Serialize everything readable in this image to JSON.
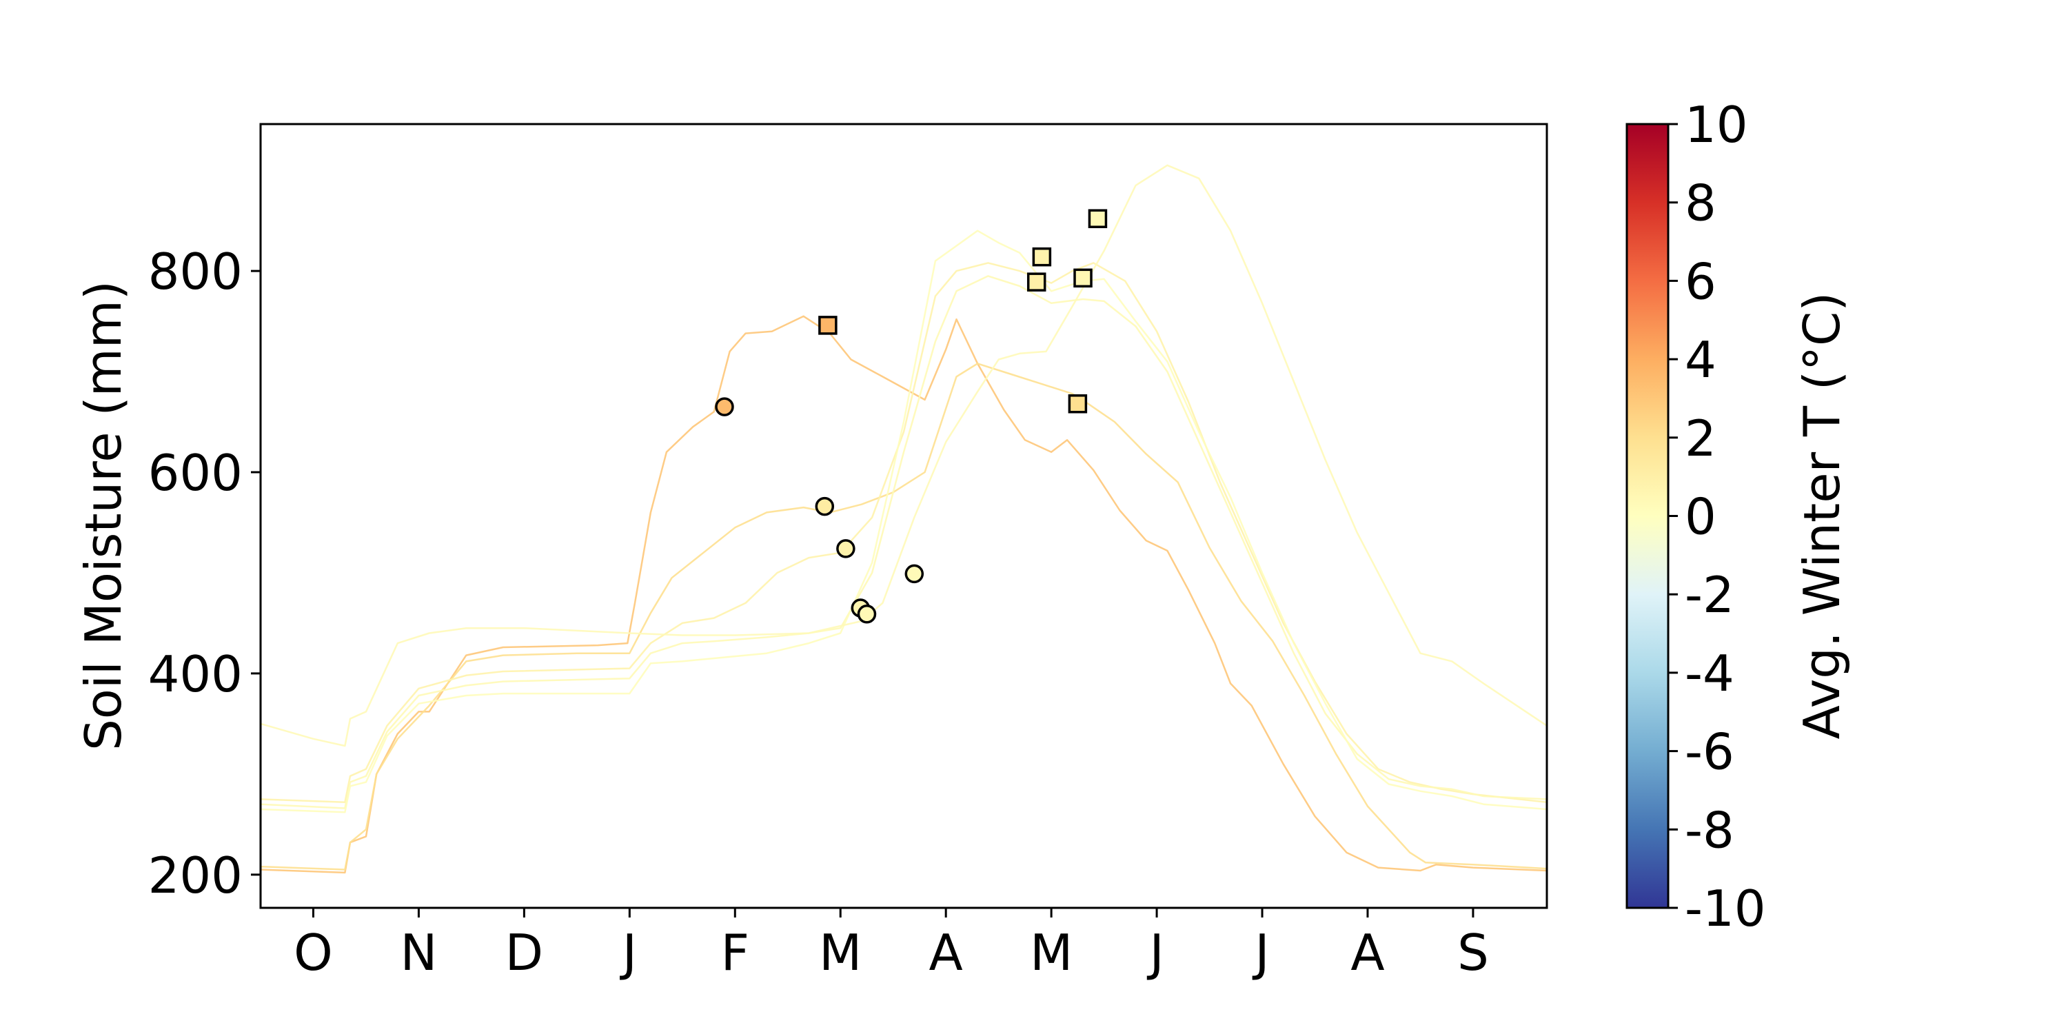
{
  "chart_data": {
    "type": "line",
    "title": "",
    "xlabel": "",
    "ylabel": "Soil Moisture (mm)",
    "ylim": [
      167,
      946
    ],
    "yticks": [
      200,
      400,
      600,
      800
    ],
    "xlim": [
      0,
      12.2
    ],
    "xticks": [
      0.5,
      1.5,
      2.5,
      3.5,
      4.5,
      5.5,
      6.5,
      7.5,
      8.5,
      9.5,
      10.5,
      11.5
    ],
    "xtick_labels": [
      "O",
      "N",
      "D",
      "J",
      "F",
      "M",
      "A",
      "M",
      "J",
      "J",
      "A",
      "S"
    ],
    "grid": false,
    "colorbar": {
      "label": "Avg. Winter T (°C)",
      "range": [
        -10,
        10
      ],
      "ticks": [
        -10,
        -8,
        -6,
        -4,
        -2,
        0,
        2,
        4,
        6,
        8,
        10
      ],
      "tick_labels": [
        "-10",
        "-8",
        "-6",
        "-4",
        "-2",
        "0",
        "2",
        "4",
        "6",
        "8",
        "10"
      ],
      "colormap": "RdYlBu_r",
      "stops": [
        "#313695",
        "#4575b4",
        "#74add1",
        "#abd9e9",
        "#e0f3f8",
        "#ffffbf",
        "#fee090",
        "#fdae61",
        "#f46d43",
        "#d73027",
        "#a50026"
      ]
    },
    "series": [
      {
        "winter_temp": 3.0,
        "points": [
          [
            0,
            205
          ],
          [
            0.8,
            202
          ],
          [
            0.85,
            232
          ],
          [
            1.0,
            238
          ],
          [
            1.1,
            300
          ],
          [
            1.3,
            340
          ],
          [
            1.5,
            362
          ],
          [
            1.6,
            362
          ],
          [
            1.95,
            418
          ],
          [
            2.3,
            426
          ],
          [
            3.2,
            428
          ],
          [
            3.48,
            430
          ],
          [
            3.55,
            470
          ],
          [
            3.7,
            560
          ],
          [
            3.85,
            620
          ],
          [
            4.1,
            645
          ],
          [
            4.3,
            660
          ],
          [
            4.45,
            720
          ],
          [
            4.6,
            738
          ],
          [
            4.85,
            740
          ],
          [
            5.15,
            755
          ],
          [
            5.4,
            738
          ],
          [
            5.6,
            712
          ],
          [
            5.9,
            695
          ],
          [
            6.3,
            672
          ],
          [
            6.5,
            722
          ],
          [
            6.6,
            752
          ],
          [
            6.8,
            708
          ],
          [
            7.05,
            662
          ],
          [
            7.25,
            632
          ],
          [
            7.5,
            620
          ],
          [
            7.65,
            632
          ],
          [
            7.9,
            602
          ],
          [
            8.15,
            562
          ],
          [
            8.4,
            532
          ],
          [
            8.6,
            522
          ],
          [
            8.8,
            483
          ],
          [
            9.05,
            430
          ],
          [
            9.2,
            390
          ],
          [
            9.4,
            368
          ],
          [
            9.7,
            310
          ],
          [
            10.0,
            258
          ],
          [
            10.3,
            222
          ],
          [
            10.6,
            207
          ],
          [
            11.0,
            204
          ],
          [
            11.15,
            210
          ],
          [
            11.5,
            207
          ],
          [
            12.2,
            204
          ]
        ],
        "markers": [
          {
            "shape": "circle",
            "x": 4.4,
            "y": 665,
            "t": 3.5
          },
          {
            "shape": "square",
            "x": 5.38,
            "y": 746,
            "t": 3.7
          }
        ]
      },
      {
        "winter_temp": 2.0,
        "points": [
          [
            0,
            208
          ],
          [
            0.8,
            205
          ],
          [
            0.85,
            232
          ],
          [
            1.0,
            245
          ],
          [
            1.1,
            300
          ],
          [
            1.3,
            335
          ],
          [
            1.6,
            368
          ],
          [
            1.95,
            412
          ],
          [
            2.3,
            418
          ],
          [
            3.0,
            420
          ],
          [
            3.5,
            420
          ],
          [
            3.7,
            460
          ],
          [
            3.9,
            495
          ],
          [
            4.2,
            520
          ],
          [
            4.5,
            545
          ],
          [
            4.8,
            560
          ],
          [
            5.15,
            565
          ],
          [
            5.4,
            560
          ],
          [
            5.7,
            568
          ],
          [
            6.0,
            580
          ],
          [
            6.3,
            600
          ],
          [
            6.6,
            695
          ],
          [
            6.8,
            708
          ],
          [
            7.1,
            698
          ],
          [
            7.4,
            688
          ],
          [
            7.7,
            678
          ],
          [
            7.85,
            668
          ],
          [
            8.1,
            650
          ],
          [
            8.4,
            618
          ],
          [
            8.7,
            590
          ],
          [
            9.0,
            525
          ],
          [
            9.3,
            472
          ],
          [
            9.6,
            432
          ],
          [
            9.9,
            378
          ],
          [
            10.2,
            320
          ],
          [
            10.5,
            268
          ],
          [
            10.9,
            222
          ],
          [
            11.05,
            212
          ],
          [
            11.5,
            210
          ],
          [
            12.2,
            206
          ]
        ],
        "markers": [
          {
            "shape": "circle",
            "x": 5.35,
            "y": 566,
            "t": 1.2
          },
          {
            "shape": "square",
            "x": 7.75,
            "y": 668,
            "t": 2.0
          }
        ]
      },
      {
        "winter_temp": 0.8,
        "points": [
          [
            0,
            275
          ],
          [
            0.8,
            272
          ],
          [
            0.85,
            298
          ],
          [
            1.0,
            305
          ],
          [
            1.2,
            348
          ],
          [
            1.5,
            385
          ],
          [
            1.95,
            398
          ],
          [
            2.3,
            402
          ],
          [
            3.5,
            405
          ],
          [
            3.7,
            430
          ],
          [
            4.0,
            450
          ],
          [
            4.3,
            455
          ],
          [
            4.6,
            470
          ],
          [
            4.9,
            500
          ],
          [
            5.2,
            515
          ],
          [
            5.5,
            520
          ],
          [
            5.8,
            555
          ],
          [
            6.1,
            640
          ],
          [
            6.4,
            775
          ],
          [
            6.6,
            800
          ],
          [
            6.9,
            808
          ],
          [
            7.2,
            800
          ],
          [
            7.5,
            788
          ],
          [
            7.7,
            800
          ],
          [
            7.9,
            808
          ],
          [
            8.2,
            790
          ],
          [
            8.5,
            740
          ],
          [
            8.8,
            670
          ],
          [
            9.1,
            590
          ],
          [
            9.4,
            520
          ],
          [
            9.7,
            450
          ],
          [
            10.0,
            392
          ],
          [
            10.3,
            340
          ],
          [
            10.6,
            305
          ],
          [
            10.9,
            292
          ],
          [
            11.2,
            285
          ],
          [
            11.5,
            280
          ],
          [
            12.2,
            272
          ]
        ],
        "markers": [
          {
            "shape": "circle",
            "x": 5.55,
            "y": 524,
            "t": 0.8
          },
          {
            "shape": "square",
            "x": 7.36,
            "y": 789,
            "t": 1.0
          }
        ]
      },
      {
        "winter_temp": 0.4,
        "points": [
          [
            0,
            270
          ],
          [
            0.8,
            266
          ],
          [
            0.85,
            292
          ],
          [
            1.0,
            298
          ],
          [
            1.2,
            342
          ],
          [
            1.5,
            378
          ],
          [
            1.95,
            388
          ],
          [
            2.3,
            392
          ],
          [
            3.5,
            395
          ],
          [
            3.7,
            420
          ],
          [
            4.0,
            430
          ],
          [
            4.3,
            432
          ],
          [
            4.8,
            436
          ],
          [
            5.2,
            440
          ],
          [
            5.5,
            445
          ],
          [
            5.8,
            500
          ],
          [
            6.1,
            620
          ],
          [
            6.4,
            730
          ],
          [
            6.6,
            780
          ],
          [
            6.9,
            795
          ],
          [
            7.2,
            785
          ],
          [
            7.5,
            768
          ],
          [
            7.8,
            772
          ],
          [
            8.0,
            770
          ],
          [
            8.3,
            745
          ],
          [
            8.6,
            700
          ],
          [
            8.9,
            630
          ],
          [
            9.2,
            560
          ],
          [
            9.5,
            490
          ],
          [
            9.8,
            420
          ],
          [
            10.1,
            360
          ],
          [
            10.4,
            320
          ],
          [
            10.7,
            295
          ],
          [
            11.0,
            288
          ],
          [
            11.3,
            285
          ],
          [
            11.6,
            278
          ],
          [
            12.2,
            275
          ]
        ],
        "markers": [
          {
            "shape": "circle",
            "x": 5.69,
            "y": 465,
            "t": 0.6
          },
          {
            "shape": "square",
            "x": 7.41,
            "y": 814,
            "t": 0.8
          }
        ]
      },
      {
        "winter_temp": 0.1,
        "points": [
          [
            0,
            265
          ],
          [
            0.8,
            262
          ],
          [
            0.85,
            288
          ],
          [
            1.0,
            292
          ],
          [
            1.2,
            338
          ],
          [
            1.5,
            370
          ],
          [
            1.95,
            378
          ],
          [
            2.3,
            380
          ],
          [
            3.5,
            380
          ],
          [
            3.7,
            410
          ],
          [
            4.0,
            412
          ],
          [
            4.3,
            415
          ],
          [
            4.8,
            420
          ],
          [
            5.2,
            430
          ],
          [
            5.5,
            440
          ],
          [
            5.8,
            510
          ],
          [
            6.1,
            650
          ],
          [
            6.4,
            810
          ],
          [
            6.6,
            825
          ],
          [
            6.8,
            840
          ],
          [
            7.0,
            828
          ],
          [
            7.2,
            818
          ],
          [
            7.5,
            780
          ],
          [
            7.8,
            790
          ],
          [
            8.0,
            792
          ],
          [
            8.3,
            750
          ],
          [
            8.6,
            710
          ],
          [
            8.9,
            640
          ],
          [
            9.2,
            575
          ],
          [
            9.5,
            500
          ],
          [
            9.8,
            430
          ],
          [
            10.1,
            370
          ],
          [
            10.4,
            315
          ],
          [
            10.7,
            290
          ],
          [
            11.0,
            283
          ],
          [
            11.3,
            278
          ],
          [
            11.6,
            270
          ],
          [
            12.2,
            265
          ]
        ],
        "markers": [
          {
            "shape": "circle",
            "x": 5.75,
            "y": 459,
            "t": 0.4
          },
          {
            "shape": "square",
            "x": 7.8,
            "y": 793,
            "t": 0.5
          }
        ]
      },
      {
        "winter_temp": 0.3,
        "points": [
          [
            0,
            350
          ],
          [
            0.5,
            335
          ],
          [
            0.8,
            328
          ],
          [
            0.85,
            355
          ],
          [
            1.0,
            362
          ],
          [
            1.3,
            430
          ],
          [
            1.6,
            440
          ],
          [
            1.95,
            445
          ],
          [
            2.5,
            445
          ],
          [
            3.5,
            440
          ],
          [
            4.0,
            438
          ],
          [
            4.5,
            438
          ],
          [
            5.2,
            440
          ],
          [
            5.7,
            452
          ],
          [
            5.9,
            470
          ],
          [
            6.2,
            555
          ],
          [
            6.5,
            630
          ],
          [
            6.8,
            680
          ],
          [
            7.0,
            712
          ],
          [
            7.2,
            718
          ],
          [
            7.45,
            720
          ],
          [
            7.7,
            765
          ],
          [
            8.0,
            820
          ],
          [
            8.3,
            885
          ],
          [
            8.6,
            905
          ],
          [
            8.9,
            892
          ],
          [
            9.2,
            840
          ],
          [
            9.5,
            768
          ],
          [
            9.8,
            690
          ],
          [
            10.1,
            612
          ],
          [
            10.4,
            540
          ],
          [
            10.7,
            480
          ],
          [
            11.0,
            420
          ],
          [
            11.3,
            412
          ],
          [
            11.6,
            390
          ],
          [
            12.2,
            348
          ]
        ],
        "markers": [
          {
            "shape": "circle",
            "x": 6.2,
            "y": 499,
            "t": 0.3
          },
          {
            "shape": "square",
            "x": 7.94,
            "y": 852,
            "t": 0.4
          }
        ]
      }
    ]
  }
}
